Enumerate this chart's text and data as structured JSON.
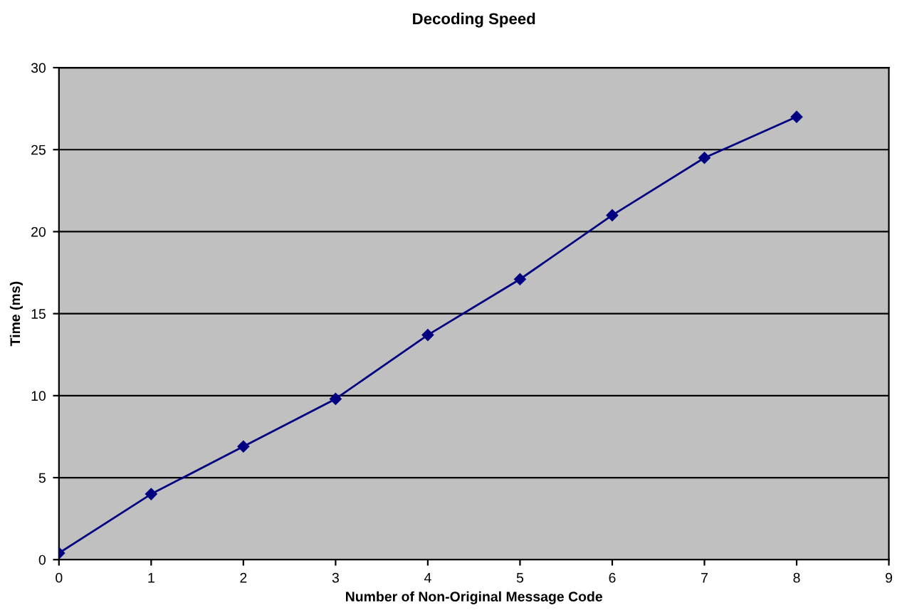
{
  "chart_data": {
    "type": "line",
    "title": "Decoding Speed",
    "xlabel": "Number of Non-Original Message Code",
    "ylabel": "Time (ms)",
    "x": [
      0,
      1,
      2,
      3,
      4,
      5,
      6,
      7,
      8
    ],
    "series": [
      {
        "color": "#000080",
        "values": [
          0.4,
          4.0,
          6.9,
          9.8,
          13.7,
          17.1,
          21.0,
          24.5,
          27.0
        ]
      }
    ],
    "xlim": [
      0,
      9
    ],
    "xticks": [
      0,
      1,
      2,
      3,
      4,
      5,
      6,
      7,
      8,
      9
    ],
    "ylim": [
      0,
      30
    ],
    "yticks": [
      0,
      5,
      10,
      15,
      20,
      25,
      30
    ],
    "grid": "y",
    "marker": "diamond",
    "line_style": "solid"
  }
}
